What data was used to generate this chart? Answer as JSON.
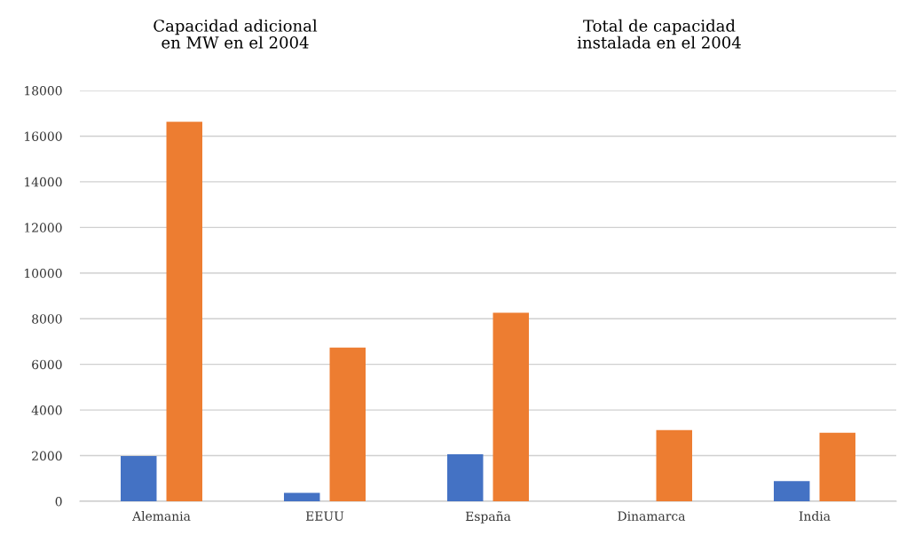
{
  "chart_data": {
    "type": "bar",
    "categories": [
      "Alemania",
      "EEUU",
      "España",
      "Dinamarca",
      "India"
    ],
    "series": [
      {
        "color": "#4472c4",
        "values": [
          1980,
          370,
          2060,
          0,
          880
        ]
      },
      {
        "color": "#ed7d31",
        "values": [
          16630,
          6740,
          8260,
          3120,
          3000
        ]
      }
    ],
    "annotations": [
      "Capacidad adicional\nen MW en el 2004",
      "Total de capacidad\ninstalada en el 2004"
    ],
    "ylim": [
      0,
      18000
    ],
    "yticks": [
      0,
      2000,
      4000,
      6000,
      8000,
      10000,
      12000,
      14000,
      16000,
      18000
    ],
    "grid": "y",
    "legend": false
  }
}
